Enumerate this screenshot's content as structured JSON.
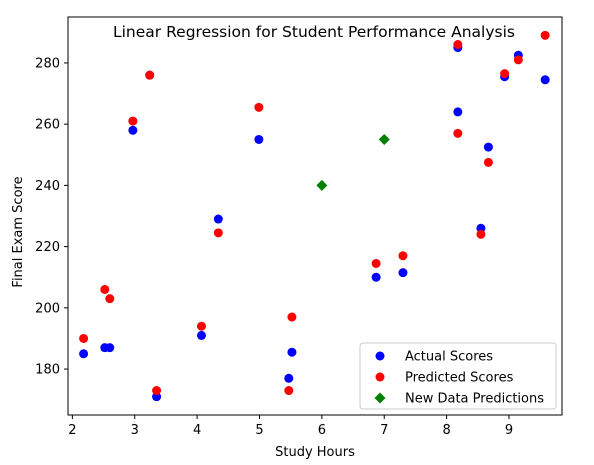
{
  "chart_data": {
    "type": "scatter",
    "title": "Linear Regression for Student Performance Analysis",
    "xlabel": "Study Hours",
    "ylabel": "Final Exam Score",
    "xlim": [
      1.93,
      9.85
    ],
    "ylim": [
      165,
      295
    ],
    "xticks": [
      2,
      3,
      4,
      5,
      6,
      7,
      8,
      9
    ],
    "yticks": [
      180,
      200,
      220,
      240,
      260,
      280
    ],
    "grid": false,
    "legend_position": "lower-right",
    "series": [
      {
        "name": "Actual Scores",
        "color": "#0000ff",
        "marker": "circle",
        "points": [
          [
            2.18,
            185
          ],
          [
            2.52,
            187
          ],
          [
            2.6,
            187
          ],
          [
            2.97,
            258
          ],
          [
            3.24,
            276
          ],
          [
            3.35,
            171
          ],
          [
            4.07,
            191
          ],
          [
            4.34,
            229
          ],
          [
            4.99,
            255
          ],
          [
            5.47,
            177
          ],
          [
            5.52,
            185.5
          ],
          [
            6.87,
            210
          ],
          [
            7.3,
            211.5
          ],
          [
            8.18,
            285
          ],
          [
            8.18,
            264
          ],
          [
            8.55,
            226
          ],
          [
            8.67,
            252.5
          ],
          [
            8.93,
            275.5
          ],
          [
            9.15,
            282.5
          ],
          [
            9.58,
            274.5
          ]
        ]
      },
      {
        "name": "Predicted Scores",
        "color": "#ff0000",
        "marker": "circle",
        "points": [
          [
            2.18,
            190
          ],
          [
            2.52,
            206
          ],
          [
            2.6,
            203
          ],
          [
            2.97,
            261
          ],
          [
            3.24,
            276
          ],
          [
            3.35,
            173
          ],
          [
            4.07,
            194
          ],
          [
            4.34,
            224.5
          ],
          [
            4.99,
            265.5
          ],
          [
            5.47,
            173
          ],
          [
            5.52,
            197
          ],
          [
            6.87,
            214.5
          ],
          [
            7.3,
            217
          ],
          [
            8.18,
            286
          ],
          [
            8.18,
            257
          ],
          [
            8.55,
            224
          ],
          [
            8.67,
            247.5
          ],
          [
            8.93,
            276.5
          ],
          [
            9.15,
            281
          ],
          [
            9.58,
            289
          ]
        ]
      },
      {
        "name": "New Data Predictions",
        "color": "#008000",
        "marker": "diamond",
        "points": [
          [
            6,
            240
          ],
          [
            7,
            255
          ]
        ]
      }
    ]
  }
}
